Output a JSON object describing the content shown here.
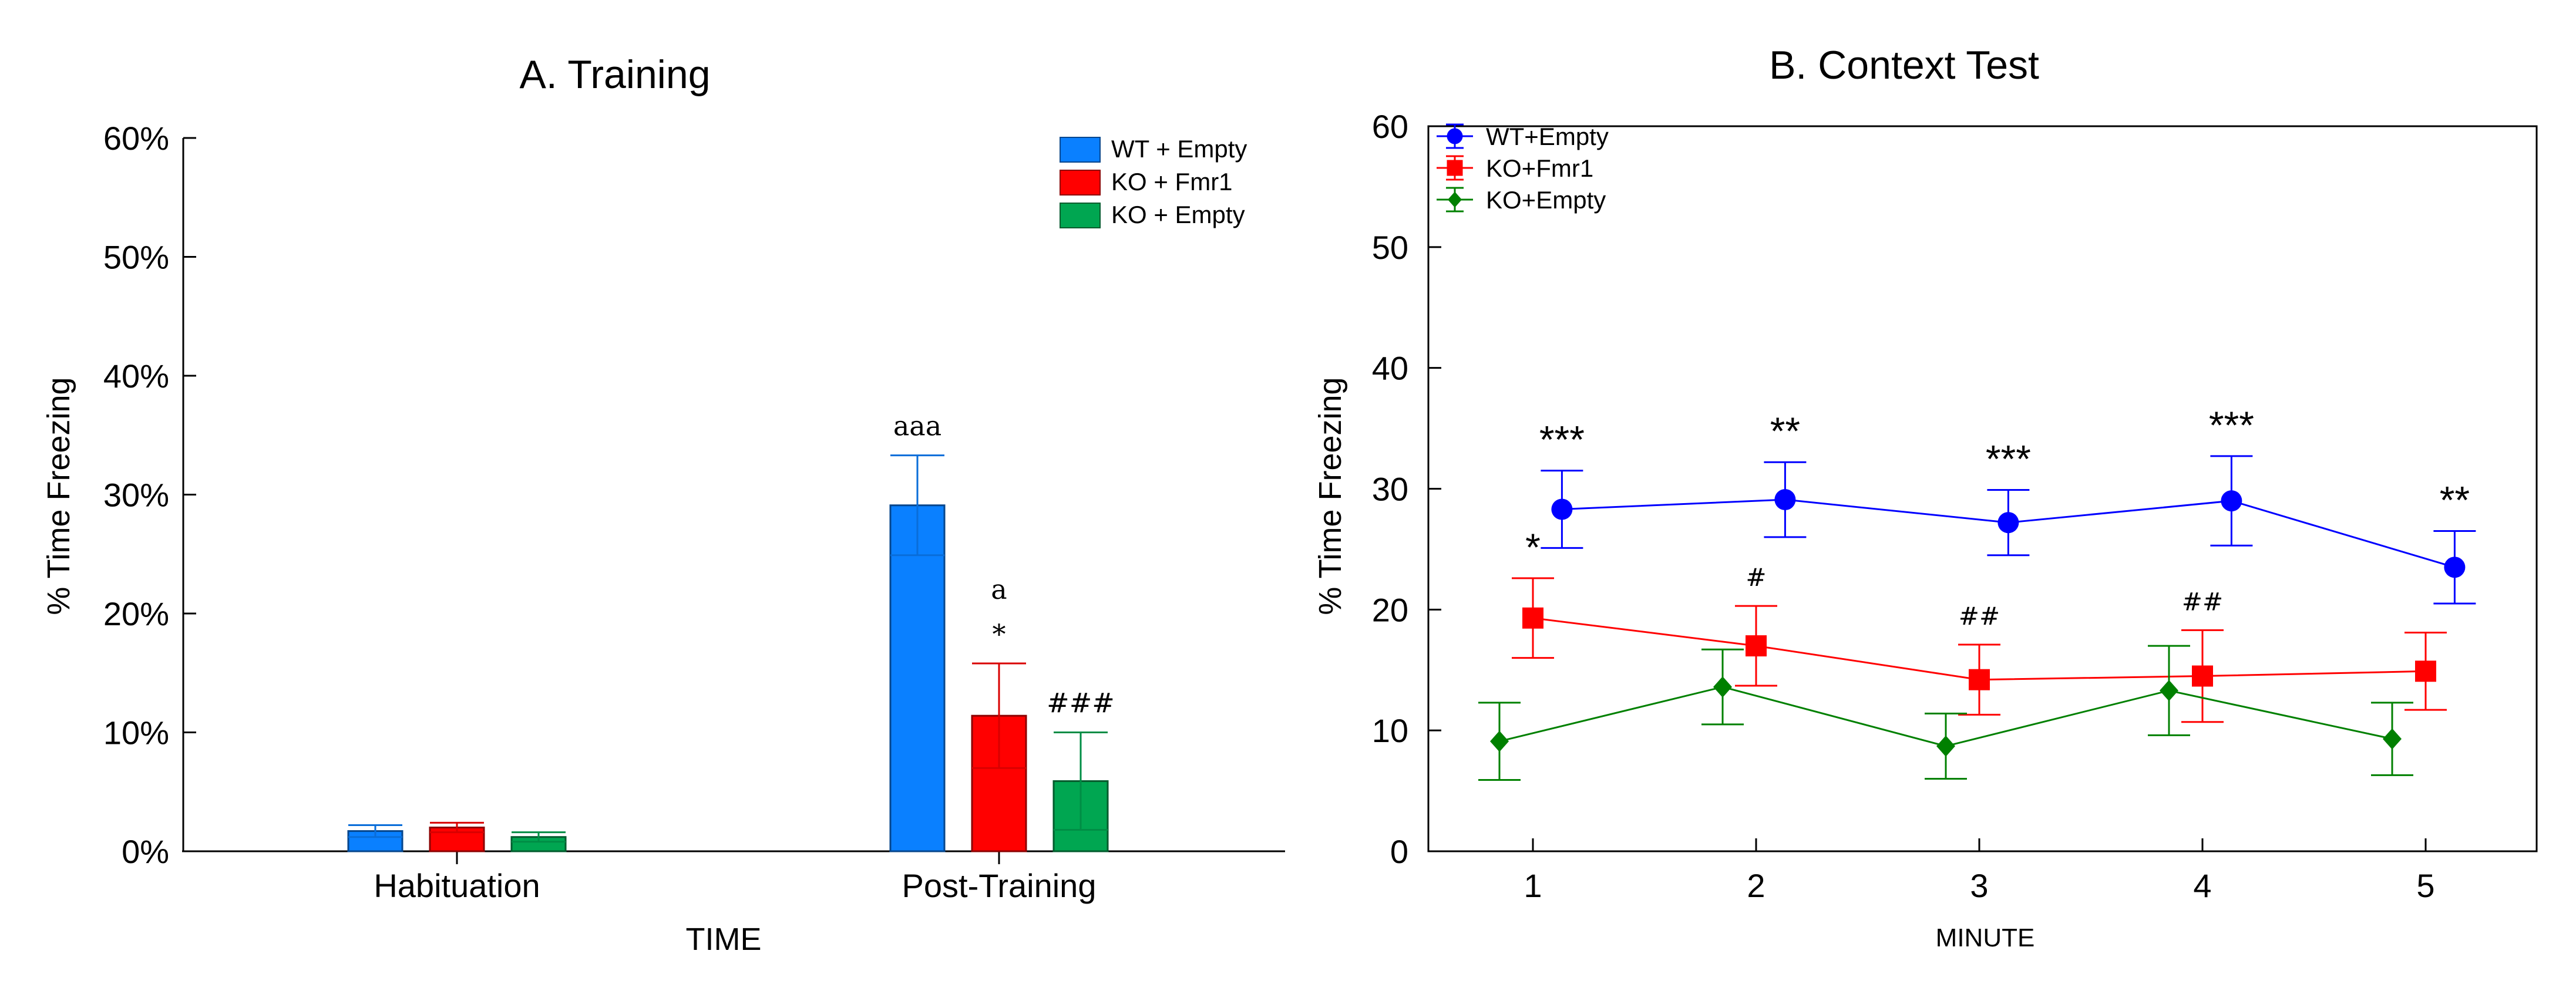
{
  "chart_data": [
    {
      "type": "bar",
      "title": "A. Training",
      "xlabel": "TIME",
      "ylabel": "% Time Freezing",
      "ylim": [
        0,
        60
      ],
      "yticks": [
        "0%",
        "10%",
        "20%",
        "30%",
        "40%",
        "50%",
        "60%"
      ],
      "categories": [
        "Habituation",
        "Post-Training"
      ],
      "legend_position": "top-right",
      "series": [
        {
          "name": "WT + Empty",
          "color": "#0a80ff",
          "values": [
            1.7,
            29.1
          ],
          "errors": [
            0.5,
            4.2
          ]
        },
        {
          "name": "KO + Fmr1",
          "color": "#ff0000",
          "values": [
            2.0,
            11.4
          ],
          "errors": [
            0.4,
            4.4
          ]
        },
        {
          "name": "KO + Empty",
          "color": "#00a651",
          "values": [
            1.2,
            5.9
          ],
          "errors": [
            0.4,
            4.1
          ]
        }
      ],
      "annotations": [
        {
          "category": 1,
          "series": 0,
          "lines": [
            "aaa"
          ]
        },
        {
          "category": 1,
          "series": 1,
          "lines": [
            "a",
            "*"
          ]
        },
        {
          "category": 1,
          "series": 2,
          "lines": [
            "###"
          ]
        }
      ]
    },
    {
      "type": "line",
      "title": "B. Context Test",
      "xlabel": "MINUTE",
      "ylabel": "% Time Freezing",
      "ylim": [
        0,
        60
      ],
      "yticks": [
        "0",
        "10",
        "20",
        "30",
        "40",
        "50",
        "60"
      ],
      "x": [
        1,
        2,
        3,
        4,
        5
      ],
      "legend_position": "top-left",
      "series": [
        {
          "name": "WT+Empty",
          "color": "#0000ff",
          "marker": "circle",
          "values": [
            28.3,
            29.1,
            27.2,
            29.0,
            23.5
          ],
          "errors": [
            3.2,
            3.1,
            2.7,
            3.7,
            3.0
          ]
        },
        {
          "name": "KO+Fmr1",
          "color": "#ff0000",
          "marker": "square",
          "values": [
            19.3,
            17.0,
            14.2,
            14.5,
            14.9
          ],
          "errors": [
            3.3,
            3.3,
            2.9,
            3.8,
            3.2
          ]
        },
        {
          "name": "KO+Empty",
          "color": "#008000",
          "marker": "diamond",
          "values": [
            9.1,
            13.6,
            8.7,
            13.3,
            9.3
          ],
          "errors": [
            3.2,
            3.1,
            2.7,
            3.7,
            3.0
          ]
        }
      ],
      "annotations": [
        {
          "x": 1,
          "series": 0,
          "text": "***",
          "size": "large"
        },
        {
          "x": 2,
          "series": 0,
          "text": "**",
          "size": "large"
        },
        {
          "x": 3,
          "series": 0,
          "text": "***",
          "size": "large"
        },
        {
          "x": 4,
          "series": 0,
          "text": "***",
          "size": "large"
        },
        {
          "x": 5,
          "series": 0,
          "text": "**",
          "size": "large"
        },
        {
          "x": 1,
          "series": 1,
          "text": "*",
          "size": "large"
        },
        {
          "x": 2,
          "series": 1,
          "text": "#",
          "size": "small"
        },
        {
          "x": 3,
          "series": 1,
          "text": "##",
          "size": "small"
        },
        {
          "x": 4,
          "series": 1,
          "text": "##",
          "size": "small"
        }
      ]
    }
  ]
}
